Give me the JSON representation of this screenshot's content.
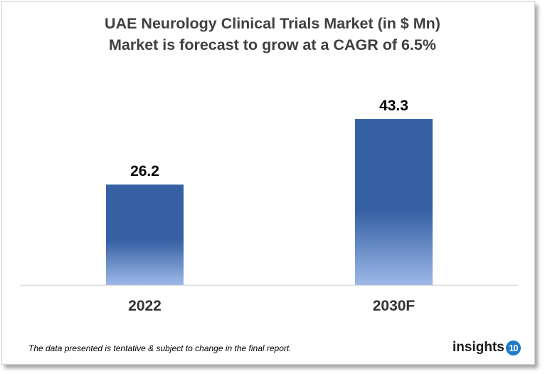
{
  "chart_data": {
    "type": "bar",
    "title": "UAE Neurology Clinical Trials Market (in $ Mn)",
    "subtitle": "Market is forecast to grow at a CAGR of 6.5%",
    "categories": [
      "2022",
      "2030F"
    ],
    "values": [
      26.2,
      43.3
    ],
    "data_labels": [
      "26.2",
      "43.3"
    ],
    "xlabel": "",
    "ylabel": "",
    "ylim": [
      0,
      50
    ],
    "grid": false,
    "legend": "none",
    "colors": {
      "bar_top": "#3560A3",
      "bar_bottom": "#9DB8E8"
    }
  },
  "footnote": "The data presented is tentative & subject to change in the final report.",
  "logo": {
    "text": "insights",
    "badge": "10"
  }
}
